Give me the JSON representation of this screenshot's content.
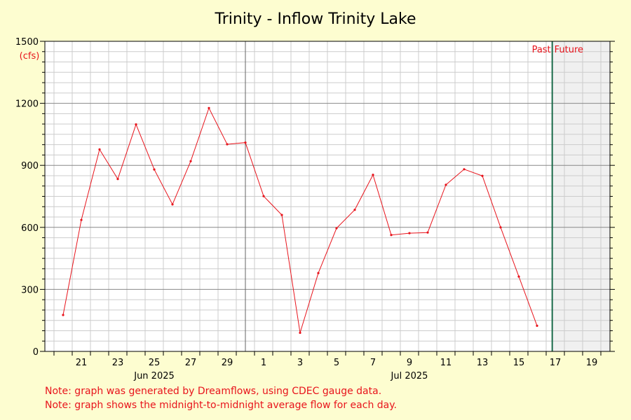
{
  "chart_data": {
    "type": "line",
    "title": "Trinity - Inflow Trinity Lake",
    "y_unit": "(cfs)",
    "ylim": [
      0,
      1500
    ],
    "y_ticks": [
      0,
      300,
      600,
      900,
      1200,
      1500
    ],
    "xlim": [
      "2025-06-19T12:00",
      "2025-07-20T12:00"
    ],
    "x_tick_labels": [
      {
        "date": "2025-06-21",
        "label": "21"
      },
      {
        "date": "2025-06-23",
        "label": "23"
      },
      {
        "date": "2025-06-25",
        "label": "25"
      },
      {
        "date": "2025-06-27",
        "label": "27"
      },
      {
        "date": "2025-06-29",
        "label": "29"
      },
      {
        "date": "2025-07-01",
        "label": "1"
      },
      {
        "date": "2025-07-03",
        "label": "3"
      },
      {
        "date": "2025-07-05",
        "label": "5"
      },
      {
        "date": "2025-07-07",
        "label": "7"
      },
      {
        "date": "2025-07-09",
        "label": "9"
      },
      {
        "date": "2025-07-11",
        "label": "11"
      },
      {
        "date": "2025-07-13",
        "label": "13"
      },
      {
        "date": "2025-07-15",
        "label": "15"
      },
      {
        "date": "2025-07-17",
        "label": "17"
      },
      {
        "date": "2025-07-19",
        "label": "19"
      }
    ],
    "month_labels": [
      {
        "date": "2025-06-25",
        "label": "Jun 2025"
      },
      {
        "date": "2025-07-09",
        "label": "Jul 2025"
      }
    ],
    "month_divider": "2025-06-30T12:00",
    "now_marker": "2025-07-17T08:00",
    "past_label": "Past",
    "future_label": "Future",
    "grid": true,
    "legend": "none",
    "colors": {
      "line": "#e8141c",
      "now_line": "#1a6b4a",
      "future_shade": "#f0f0f0",
      "plot_bg": "#ffffff",
      "page_bg": "#fdfdd0"
    },
    "series": [
      {
        "x": [
          "2025-06-20",
          "2025-06-21",
          "2025-06-22",
          "2025-06-23",
          "2025-06-24",
          "2025-06-25",
          "2025-06-26",
          "2025-06-27",
          "2025-06-28",
          "2025-06-29",
          "2025-06-30",
          "2025-07-01",
          "2025-07-02",
          "2025-07-03",
          "2025-07-04",
          "2025-07-05",
          "2025-07-06",
          "2025-07-07",
          "2025-07-08",
          "2025-07-09",
          "2025-07-10",
          "2025-07-11",
          "2025-07-12",
          "2025-07-13",
          "2025-07-14",
          "2025-07-15",
          "2025-07-16"
        ],
        "values": [
          176,
          636,
          977,
          834,
          1098,
          880,
          711,
          920,
          1177,
          1002,
          1010,
          751,
          660,
          90,
          379,
          596,
          685,
          854,
          563,
          572,
          575,
          806,
          881,
          849,
          600,
          362,
          124
        ]
      }
    ]
  },
  "notes": [
    "Note: graph was generated by Dreamflows, using CDEC gauge data.",
    "Note: graph shows the midnight-to-midnight average flow for each day."
  ]
}
